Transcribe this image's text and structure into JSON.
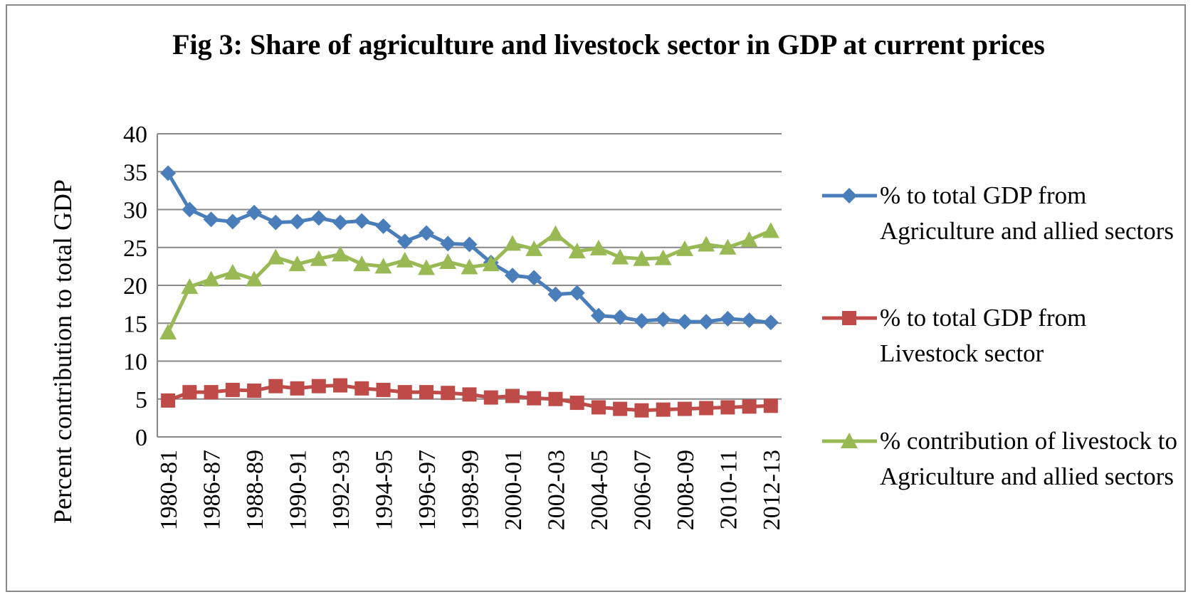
{
  "chart_data": {
    "type": "line",
    "title": "Fig 3: Share of agriculture and livestock sector in GDP at current prices",
    "y_label": "Percent contribution to total GDP",
    "categories": [
      "1980-81",
      null,
      "1986-87",
      null,
      "1988-89",
      null,
      "1990-91",
      null,
      "1992-93",
      null,
      "1994-95",
      null,
      "1996-97",
      null,
      "1998-99",
      null,
      "2000-01",
      null,
      "2002-03",
      null,
      "2004-05",
      null,
      "2006-07",
      null,
      "2008-09",
      null,
      "2010-11",
      null,
      "2012-13"
    ],
    "series": [
      {
        "name": "% to total GDP from Agriculture and allied sectors",
        "color": "#4a7ebb",
        "marker": "diamond",
        "values": [
          34.8,
          30,
          28.7,
          28.4,
          29.6,
          28.3,
          28.4,
          28.9,
          28.3,
          28.5,
          27.8,
          25.8,
          26.9,
          25.5,
          25.4,
          23,
          21.3,
          21,
          18.8,
          19,
          16,
          15.8,
          15.3,
          15.5,
          15.2,
          15.2,
          15.6,
          15.4,
          15.1
        ]
      },
      {
        "name": "% to total GDP from Livestock sector",
        "color": "#be4b48",
        "marker": "square",
        "values": [
          4.8,
          5.9,
          5.9,
          6.2,
          6.1,
          6.7,
          6.4,
          6.7,
          6.8,
          6.4,
          6.2,
          5.9,
          5.9,
          5.8,
          5.6,
          5.2,
          5.4,
          5.1,
          5,
          4.5,
          3.9,
          3.7,
          3.5,
          3.6,
          3.7,
          3.8,
          3.9,
          4,
          4.1
        ]
      },
      {
        "name": "% contribution of livestock to Agriculture and allied sectors",
        "color": "#98b954",
        "marker": "triangle",
        "values": [
          13.8,
          19.8,
          20.8,
          21.7,
          20.8,
          23.7,
          22.8,
          23.5,
          24.1,
          22.8,
          22.5,
          23.3,
          22.3,
          23.1,
          22.4,
          22.8,
          25.5,
          24.8,
          26.8,
          24.5,
          24.9,
          23.7,
          23.5,
          23.6,
          24.8,
          25.4,
          25,
          26,
          27.2
        ]
      }
    ],
    "ylim": [
      0,
      40
    ],
    "yticks": [
      0,
      5,
      10,
      15,
      20,
      25,
      30,
      35,
      40
    ],
    "grid": true,
    "legend": "right"
  }
}
